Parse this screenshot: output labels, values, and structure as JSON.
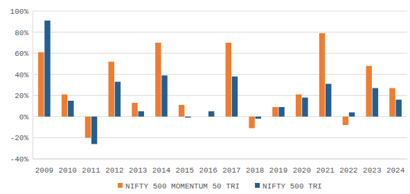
{
  "chart_data": {
    "type": "bar",
    "categories": [
      "2009",
      "2010",
      "2011",
      "2012",
      "2013",
      "2014",
      "2015",
      "2016",
      "2017",
      "2018",
      "2019",
      "2020",
      "2021",
      "2022",
      "2023",
      "2024"
    ],
    "series": [
      {
        "name": "NIFTY 500 MOMENTUM 50 TRI",
        "color": "#ed7d31",
        "values": [
          61,
          21,
          -20,
          52,
          13,
          70,
          11,
          0,
          70,
          -11,
          9,
          21,
          79,
          -8,
          48,
          27
        ]
      },
      {
        "name": "NIFTY 500 TRI",
        "color": "#255e91",
        "values": [
          91,
          15,
          -26,
          33,
          5,
          39,
          -1,
          5,
          38,
          -2,
          9,
          18,
          31,
          4,
          27,
          16
        ]
      }
    ],
    "ylim": [
      -40,
      100
    ],
    "yticks": [
      {
        "value": -40,
        "label": "-40%"
      },
      {
        "value": -20,
        "label": "-20%"
      },
      {
        "value": 0,
        "label": "0%"
      },
      {
        "value": 20,
        "label": "20%"
      },
      {
        "value": 40,
        "label": "40%"
      },
      {
        "value": 60,
        "label": "60%"
      },
      {
        "value": 80,
        "label": "80%"
      },
      {
        "value": 100,
        "label": "100%"
      }
    ],
    "grid": true,
    "legend": "bottom"
  }
}
